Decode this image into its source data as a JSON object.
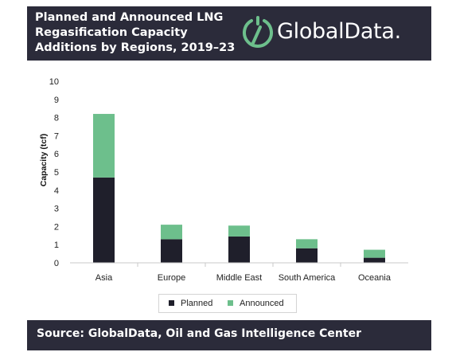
{
  "header": {
    "title": "Planned and Announced LNG\nRegasification Capacity\nAdditions by Regions, 2019–23",
    "logo_text": "GlobalData."
  },
  "footer": {
    "source": "Source: GlobalData, Oil and Gas Intelligence Center"
  },
  "colors": {
    "header_bg": "#2b2b3a",
    "planned": "#1f1f2b",
    "announced": "#6dbf8c"
  },
  "chart_data": {
    "type": "bar",
    "stacked": true,
    "categories": [
      "Asia",
      "Europe",
      "Middle East",
      "South America",
      "Oceania"
    ],
    "series": [
      {
        "name": "Planned",
        "values": [
          4.7,
          1.3,
          1.45,
          0.8,
          0.28
        ]
      },
      {
        "name": "Announced",
        "values": [
          3.5,
          0.8,
          0.6,
          0.5,
          0.44
        ]
      }
    ],
    "ylabel": "Capacity (tcf)",
    "xlabel": "",
    "ylim": [
      0,
      10
    ],
    "yticks": [
      0,
      1,
      2,
      3,
      4,
      5,
      6,
      7,
      8,
      9,
      10
    ],
    "grid": false,
    "legend_position": "bottom"
  }
}
